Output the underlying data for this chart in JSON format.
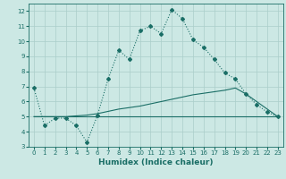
{
  "xlabel": "Humidex (Indice chaleur)",
  "bg_color": "#cce8e4",
  "grid_color": "#aaceca",
  "line_color": "#1a6e66",
  "xlim": [
    -0.5,
    23.5
  ],
  "ylim": [
    3,
    12.5
  ],
  "yticks": [
    3,
    4,
    5,
    6,
    7,
    8,
    9,
    10,
    11,
    12
  ],
  "xticks": [
    0,
    1,
    2,
    3,
    4,
    5,
    6,
    7,
    8,
    9,
    10,
    11,
    12,
    13,
    14,
    15,
    16,
    17,
    18,
    19,
    20,
    21,
    22,
    23
  ],
  "line1_x": [
    0,
    1,
    2,
    3,
    4,
    5,
    6,
    7,
    8,
    9,
    10,
    11,
    12,
    13,
    14,
    15,
    16,
    17,
    18,
    19,
    20,
    21,
    22,
    23
  ],
  "line1_y": [
    6.9,
    4.4,
    4.9,
    4.9,
    4.4,
    3.3,
    5.1,
    7.5,
    9.4,
    8.8,
    10.7,
    11.0,
    10.5,
    12.1,
    11.5,
    10.1,
    9.6,
    8.8,
    7.9,
    7.5,
    6.5,
    5.8,
    5.3,
    5.0
  ],
  "line2_x": [
    0,
    1,
    2,
    3,
    4,
    5,
    6,
    7,
    8,
    9,
    10,
    11,
    12,
    13,
    14,
    15,
    16,
    17,
    18,
    19,
    20,
    21,
    22,
    23
  ],
  "line2_y": [
    5.0,
    5.0,
    5.0,
    5.0,
    5.0,
    5.0,
    5.0,
    5.0,
    5.0,
    5.0,
    5.0,
    5.0,
    5.0,
    5.0,
    5.0,
    5.0,
    5.0,
    5.0,
    5.0,
    5.0,
    5.0,
    5.0,
    5.0,
    5.0
  ],
  "line3_x": [
    0,
    1,
    2,
    3,
    4,
    5,
    6,
    7,
    8,
    9,
    10,
    11,
    12,
    13,
    14,
    15,
    16,
    17,
    18,
    19,
    20,
    21,
    22,
    23
  ],
  "line3_y": [
    5.0,
    5.0,
    5.0,
    5.0,
    5.05,
    5.1,
    5.2,
    5.35,
    5.5,
    5.6,
    5.7,
    5.85,
    6.0,
    6.15,
    6.3,
    6.45,
    6.55,
    6.65,
    6.75,
    6.9,
    6.5,
    6.0,
    5.5,
    5.0
  ]
}
